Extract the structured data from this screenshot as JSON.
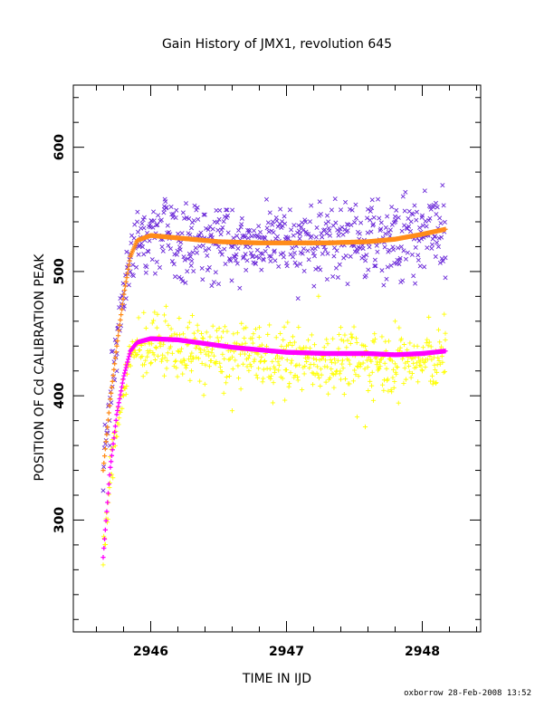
{
  "chart_data": {
    "type": "scatter",
    "title": "Gain History of JMX1, revolution 645",
    "xlabel": "TIME IN IJD",
    "ylabel": "POSITION OF Cd CALIBRATION PEAK",
    "footer": "oxborrow 28-Feb-2008 13:52",
    "xlim": [
      2945.43,
      2948.43
    ],
    "ylim": [
      210,
      650
    ],
    "x_ticks": [
      2946,
      2947,
      2948
    ],
    "x_tick_labels": [
      "2946",
      "2947",
      "2948"
    ],
    "y_ticks": [
      300,
      400,
      500,
      600
    ],
    "y_tick_labels": [
      "300",
      "400",
      "500",
      "600"
    ],
    "x_minor_step": 0.2,
    "y_minor_step": 20,
    "grid": false,
    "legend": "none",
    "x_start": 2945.65,
    "x_end": 2948.17,
    "series": [
      {
        "marker": "x",
        "color": "#6a28d8",
        "kind": "scatter",
        "approx_points": [
          [
            2945.7,
            360
          ],
          [
            2945.75,
            420
          ],
          [
            2945.8,
            470
          ],
          [
            2945.85,
            500
          ],
          [
            2945.9,
            540
          ],
          [
            2945.95,
            535
          ],
          [
            2946.1,
            550
          ],
          [
            2946.3,
            535
          ],
          [
            2946.5,
            490
          ],
          [
            2946.7,
            520
          ],
          [
            2946.9,
            540
          ],
          [
            2947.1,
            530
          ],
          [
            2947.3,
            545
          ],
          [
            2947.45,
            490
          ],
          [
            2947.6,
            550
          ],
          [
            2947.8,
            540
          ],
          [
            2948.0,
            545
          ],
          [
            2948.1,
            555
          ],
          [
            2948.17,
            495
          ]
        ],
        "band": {
          "center_after_rise": 527,
          "spread": 15
        }
      },
      {
        "marker": "+",
        "color": "#ffff00",
        "kind": "scatter",
        "approx_points": [
          [
            2945.7,
            330
          ],
          [
            2945.8,
            400
          ],
          [
            2945.9,
            445
          ],
          [
            2946.1,
            465
          ],
          [
            2946.3,
            420
          ],
          [
            2946.6,
            388
          ],
          [
            2946.8,
            455
          ],
          [
            2947.0,
            440
          ],
          [
            2947.2,
            430
          ],
          [
            2947.4,
            455
          ],
          [
            2947.52,
            383
          ],
          [
            2947.58,
            375
          ],
          [
            2947.8,
            460
          ],
          [
            2948.0,
            420
          ],
          [
            2948.1,
            410
          ],
          [
            2948.17,
            445
          ]
        ],
        "band": {
          "center_after_rise": 440,
          "spread": 12
        }
      },
      {
        "marker": "line",
        "color": "#ff8c1a",
        "kind": "smooth",
        "points": [
          [
            2945.65,
            340
          ],
          [
            2945.7,
            395
          ],
          [
            2945.75,
            440
          ],
          [
            2945.8,
            480
          ],
          [
            2945.85,
            512
          ],
          [
            2945.9,
            525
          ],
          [
            2946.0,
            529
          ],
          [
            2946.2,
            527
          ],
          [
            2946.5,
            524
          ],
          [
            2946.8,
            523
          ],
          [
            2947.0,
            523
          ],
          [
            2947.3,
            523
          ],
          [
            2947.6,
            524
          ],
          [
            2947.8,
            526
          ],
          [
            2948.0,
            530
          ],
          [
            2948.17,
            534
          ]
        ]
      },
      {
        "marker": "line",
        "color": "#ff00ff",
        "kind": "smooth",
        "points": [
          [
            2945.65,
            270
          ],
          [
            2945.7,
            340
          ],
          [
            2945.75,
            385
          ],
          [
            2945.8,
            415
          ],
          [
            2945.85,
            436
          ],
          [
            2945.9,
            443
          ],
          [
            2946.0,
            446
          ],
          [
            2946.2,
            445
          ],
          [
            2946.4,
            442
          ],
          [
            2946.6,
            439
          ],
          [
            2946.8,
            437
          ],
          [
            2947.0,
            435
          ],
          [
            2947.3,
            434
          ],
          [
            2947.6,
            434
          ],
          [
            2947.8,
            433
          ],
          [
            2948.0,
            434
          ],
          [
            2948.17,
            436
          ]
        ]
      }
    ]
  }
}
